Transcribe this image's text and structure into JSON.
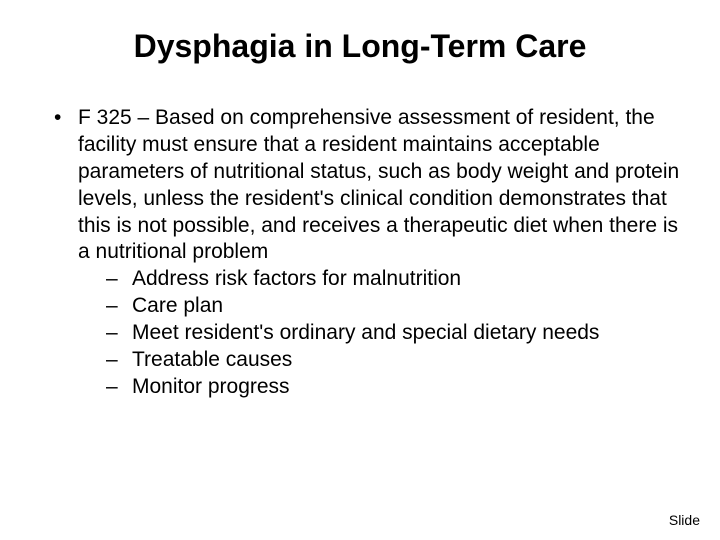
{
  "title": "Dysphagia in Long-Term Care",
  "bullet_main": "F 325 – Based on comprehensive assessment of resident, the facility must ensure that a resident maintains acceptable parameters of nutritional status, such as body weight and protein levels, unless the resident's clinical condition demonstrates that this is not possible, and receives a therapeutic diet when there is a nutritional problem",
  "sub_bullets": {
    "0": "Address risk factors for malnutrition",
    "1": "Care plan",
    "2": "Meet resident's ordinary and special dietary needs",
    "3": "Treatable causes",
    "4": "Monitor progress"
  },
  "footer": "Slide",
  "style": {
    "type": "document-slide",
    "background_color": "#ffffff",
    "text_color": "#000000",
    "title_fontsize": 32,
    "body_fontsize": 21,
    "footer_fontsize": 14,
    "font_family": "Arial"
  }
}
